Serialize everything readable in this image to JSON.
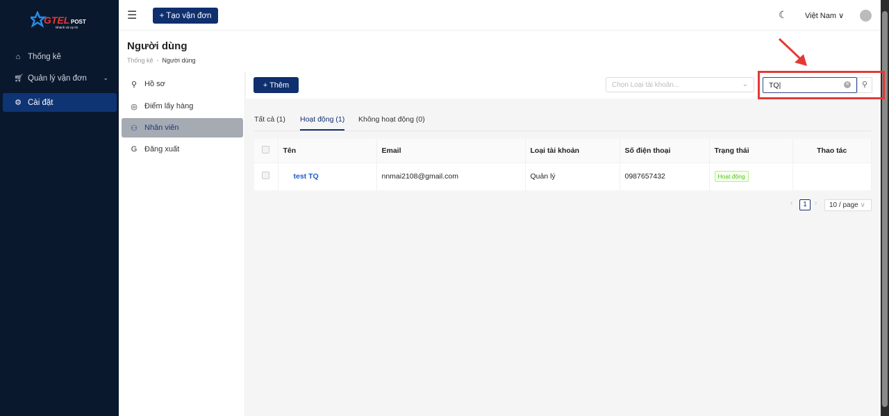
{
  "brand": {
    "logo_text": "GTEL POST",
    "tagline": "Nhanh và Uy tín"
  },
  "sidebar": {
    "items": [
      {
        "label": "Thống kê",
        "icon": "home-icon"
      },
      {
        "label": "Quản lý vận đơn",
        "icon": "cart-icon"
      },
      {
        "label": "Cài đặt",
        "icon": "gear-icon",
        "active": true
      }
    ]
  },
  "header": {
    "create_label": "Tạo vận đơn",
    "language": "Việt Nam"
  },
  "page": {
    "title": "Người dùng",
    "breadcrumb": [
      "Thống kê",
      "Người dùng"
    ]
  },
  "left_menu": {
    "items": [
      {
        "label": "Hồ sơ"
      },
      {
        "label": "Điểm lấy hàng"
      },
      {
        "label": "Nhân viên",
        "active": true
      },
      {
        "label": "Đăng xuất"
      }
    ]
  },
  "toolbar": {
    "add_label": "Thêm",
    "account_type_placeholder": "Chọn Loại tài khoản...",
    "search_value": "TQ"
  },
  "tabs": [
    {
      "label": "Tất cả (1)"
    },
    {
      "label": "Hoạt động (1)",
      "active": true
    },
    {
      "label": "Không hoạt động (0)"
    }
  ],
  "table": {
    "columns": [
      "Tên",
      "Email",
      "Loại tài khoản",
      "Số điện thoại",
      "Trạng thái",
      "Thao tác"
    ],
    "rows": [
      {
        "name": "test TQ",
        "email": "nnmai2108@gmail.com",
        "type": "Quản lý",
        "phone": "0987657432",
        "status": "Hoạt động"
      }
    ]
  },
  "pagination": {
    "current": "1",
    "page_size": "10 / page"
  },
  "colors": {
    "primary": "#0f2f6e",
    "sidebar": "#0a182d",
    "annotation": "#e53935",
    "status_active": "#52c41a"
  }
}
